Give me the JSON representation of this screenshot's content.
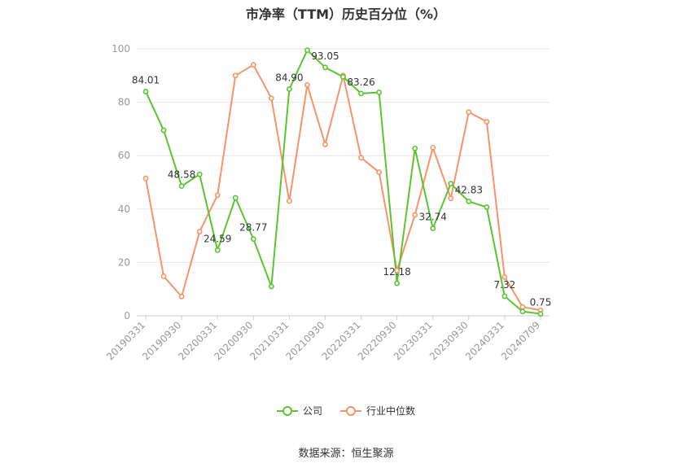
{
  "chart_data": {
    "type": "line",
    "title": "市净率（TTM）历史百分位（%）",
    "source": "数据来源：恒生聚源",
    "ylim": [
      0,
      100
    ],
    "yticks": [
      0,
      20,
      40,
      60,
      80,
      100
    ],
    "x": [
      "20190331",
      "20190630",
      "20190930",
      "20191231",
      "20200331",
      "20200630",
      "20200930",
      "20201231",
      "20210331",
      "20210630",
      "20210930",
      "20211231",
      "20220331",
      "20220630",
      "20220930",
      "20221231",
      "20230331",
      "20230630",
      "20230930",
      "20231231",
      "20240331",
      "20240630",
      "20240709"
    ],
    "xtick_labels": [
      "20190331",
      "20190930",
      "20200331",
      "20200930",
      "20210331",
      "20210930",
      "20220331",
      "20220930",
      "20230331",
      "20230930",
      "20240331",
      "20240709"
    ],
    "series": [
      {
        "name": "公司",
        "color": "#5bc431",
        "values": [
          84.01,
          69.5,
          48.58,
          53.0,
          24.59,
          44.2,
          28.77,
          11.0,
          84.9,
          99.5,
          93.05,
          89.5,
          83.26,
          83.7,
          12.18,
          62.7,
          32.74,
          49.5,
          42.83,
          40.7,
          7.32,
          1.6,
          0.75
        ],
        "labels": {
          "0": "84.01",
          "2": "48.58",
          "4": "24.59",
          "6": "28.77",
          "8": "84.90",
          "10": "93.05",
          "12": "83.26",
          "14": "12.18",
          "16": "32.74",
          "18": "42.83",
          "20": "7.32",
          "22": "0.75"
        }
      },
      {
        "name": "行业中位数",
        "color": "#f4946a",
        "values": [
          51.5,
          14.8,
          7.2,
          31.5,
          45.2,
          90.0,
          94.0,
          81.5,
          43.0,
          86.5,
          64.2,
          90.0,
          59.2,
          53.8,
          17.0,
          37.8,
          63.0,
          44.0,
          76.3,
          72.7,
          14.5,
          3.3,
          2.1
        ]
      }
    ]
  }
}
